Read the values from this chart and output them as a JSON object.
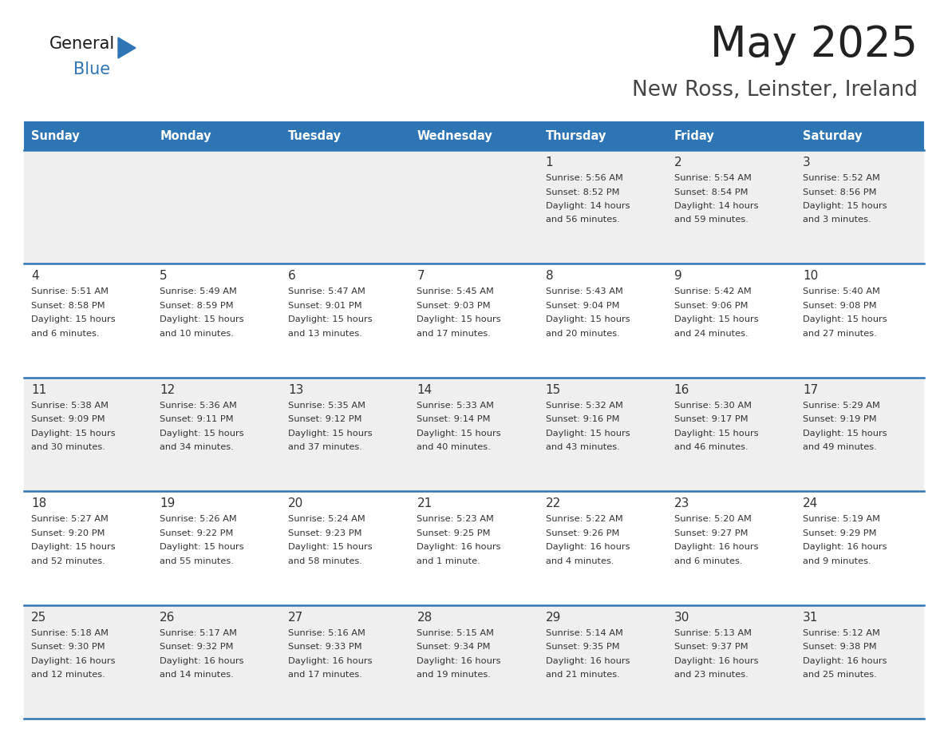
{
  "title": "May 2025",
  "subtitle": "New Ross, Leinster, Ireland",
  "days_of_week": [
    "Sunday",
    "Monday",
    "Tuesday",
    "Wednesday",
    "Thursday",
    "Friday",
    "Saturday"
  ],
  "header_bg": "#2E75B6",
  "header_text": "#FFFFFF",
  "row_bg_odd": "#EFEFEF",
  "row_bg_even": "#FFFFFF",
  "cell_text": "#333333",
  "day_num_color": "#333333",
  "divider_color": "#2E75B6",
  "title_color": "#222222",
  "subtitle_color": "#444444",
  "logo_general_color": "#1a1a1a",
  "logo_blue_color": "#2E75B6",
  "logo_triangle_color": "#2E75B6",
  "calendar_data": [
    [
      {
        "day": null,
        "text": ""
      },
      {
        "day": null,
        "text": ""
      },
      {
        "day": null,
        "text": ""
      },
      {
        "day": null,
        "text": ""
      },
      {
        "day": 1,
        "text": "Sunrise: 5:56 AM\nSunset: 8:52 PM\nDaylight: 14 hours\nand 56 minutes."
      },
      {
        "day": 2,
        "text": "Sunrise: 5:54 AM\nSunset: 8:54 PM\nDaylight: 14 hours\nand 59 minutes."
      },
      {
        "day": 3,
        "text": "Sunrise: 5:52 AM\nSunset: 8:56 PM\nDaylight: 15 hours\nand 3 minutes."
      }
    ],
    [
      {
        "day": 4,
        "text": "Sunrise: 5:51 AM\nSunset: 8:58 PM\nDaylight: 15 hours\nand 6 minutes."
      },
      {
        "day": 5,
        "text": "Sunrise: 5:49 AM\nSunset: 8:59 PM\nDaylight: 15 hours\nand 10 minutes."
      },
      {
        "day": 6,
        "text": "Sunrise: 5:47 AM\nSunset: 9:01 PM\nDaylight: 15 hours\nand 13 minutes."
      },
      {
        "day": 7,
        "text": "Sunrise: 5:45 AM\nSunset: 9:03 PM\nDaylight: 15 hours\nand 17 minutes."
      },
      {
        "day": 8,
        "text": "Sunrise: 5:43 AM\nSunset: 9:04 PM\nDaylight: 15 hours\nand 20 minutes."
      },
      {
        "day": 9,
        "text": "Sunrise: 5:42 AM\nSunset: 9:06 PM\nDaylight: 15 hours\nand 24 minutes."
      },
      {
        "day": 10,
        "text": "Sunrise: 5:40 AM\nSunset: 9:08 PM\nDaylight: 15 hours\nand 27 minutes."
      }
    ],
    [
      {
        "day": 11,
        "text": "Sunrise: 5:38 AM\nSunset: 9:09 PM\nDaylight: 15 hours\nand 30 minutes."
      },
      {
        "day": 12,
        "text": "Sunrise: 5:36 AM\nSunset: 9:11 PM\nDaylight: 15 hours\nand 34 minutes."
      },
      {
        "day": 13,
        "text": "Sunrise: 5:35 AM\nSunset: 9:12 PM\nDaylight: 15 hours\nand 37 minutes."
      },
      {
        "day": 14,
        "text": "Sunrise: 5:33 AM\nSunset: 9:14 PM\nDaylight: 15 hours\nand 40 minutes."
      },
      {
        "day": 15,
        "text": "Sunrise: 5:32 AM\nSunset: 9:16 PM\nDaylight: 15 hours\nand 43 minutes."
      },
      {
        "day": 16,
        "text": "Sunrise: 5:30 AM\nSunset: 9:17 PM\nDaylight: 15 hours\nand 46 minutes."
      },
      {
        "day": 17,
        "text": "Sunrise: 5:29 AM\nSunset: 9:19 PM\nDaylight: 15 hours\nand 49 minutes."
      }
    ],
    [
      {
        "day": 18,
        "text": "Sunrise: 5:27 AM\nSunset: 9:20 PM\nDaylight: 15 hours\nand 52 minutes."
      },
      {
        "day": 19,
        "text": "Sunrise: 5:26 AM\nSunset: 9:22 PM\nDaylight: 15 hours\nand 55 minutes."
      },
      {
        "day": 20,
        "text": "Sunrise: 5:24 AM\nSunset: 9:23 PM\nDaylight: 15 hours\nand 58 minutes."
      },
      {
        "day": 21,
        "text": "Sunrise: 5:23 AM\nSunset: 9:25 PM\nDaylight: 16 hours\nand 1 minute."
      },
      {
        "day": 22,
        "text": "Sunrise: 5:22 AM\nSunset: 9:26 PM\nDaylight: 16 hours\nand 4 minutes."
      },
      {
        "day": 23,
        "text": "Sunrise: 5:20 AM\nSunset: 9:27 PM\nDaylight: 16 hours\nand 6 minutes."
      },
      {
        "day": 24,
        "text": "Sunrise: 5:19 AM\nSunset: 9:29 PM\nDaylight: 16 hours\nand 9 minutes."
      }
    ],
    [
      {
        "day": 25,
        "text": "Sunrise: 5:18 AM\nSunset: 9:30 PM\nDaylight: 16 hours\nand 12 minutes."
      },
      {
        "day": 26,
        "text": "Sunrise: 5:17 AM\nSunset: 9:32 PM\nDaylight: 16 hours\nand 14 minutes."
      },
      {
        "day": 27,
        "text": "Sunrise: 5:16 AM\nSunset: 9:33 PM\nDaylight: 16 hours\nand 17 minutes."
      },
      {
        "day": 28,
        "text": "Sunrise: 5:15 AM\nSunset: 9:34 PM\nDaylight: 16 hours\nand 19 minutes."
      },
      {
        "day": 29,
        "text": "Sunrise: 5:14 AM\nSunset: 9:35 PM\nDaylight: 16 hours\nand 21 minutes."
      },
      {
        "day": 30,
        "text": "Sunrise: 5:13 AM\nSunset: 9:37 PM\nDaylight: 16 hours\nand 23 minutes."
      },
      {
        "day": 31,
        "text": "Sunrise: 5:12 AM\nSunset: 9:38 PM\nDaylight: 16 hours\nand 25 minutes."
      }
    ]
  ]
}
